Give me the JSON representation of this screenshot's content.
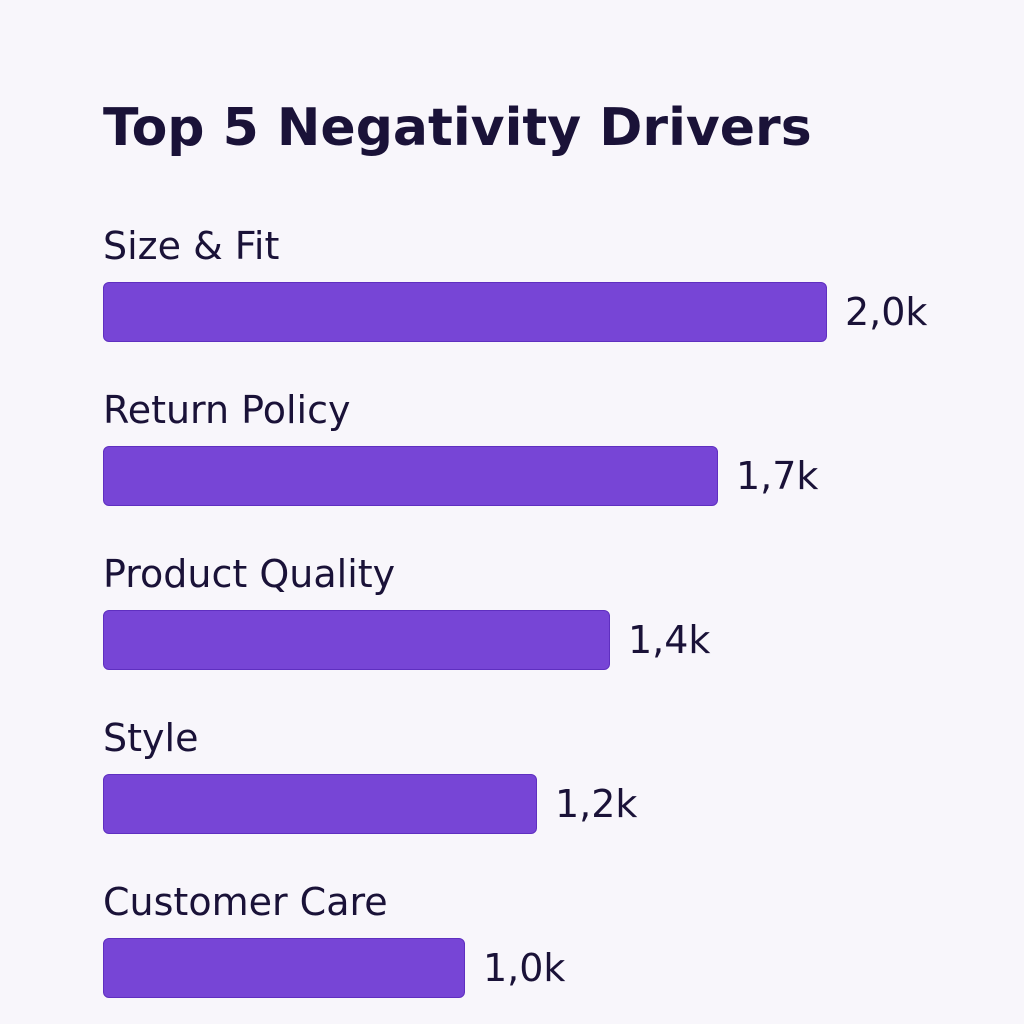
{
  "chart_data": {
    "type": "bar",
    "orientation": "horizontal",
    "title": "Top 5 Negativity Drivers",
    "categories": [
      "Size & Fit",
      "Return Policy",
      "Product Quality",
      "Style",
      "Customer Care"
    ],
    "values": [
      2000,
      1700,
      1400,
      1200,
      1000
    ],
    "value_labels": [
      "2,0k",
      "1,7k",
      "1,4k",
      "1,2k",
      "1,0k"
    ],
    "xlim": [
      0,
      2000
    ],
    "grid": false,
    "bar_color": "#7745d6"
  }
}
